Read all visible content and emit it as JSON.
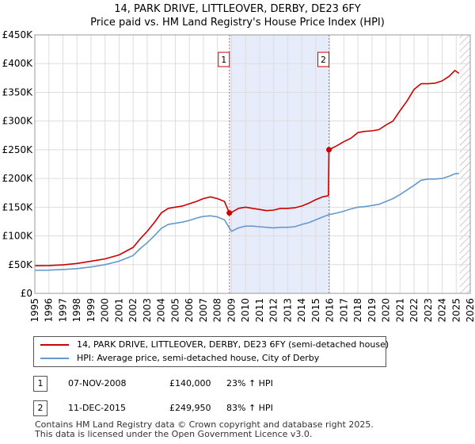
{
  "title_line1": "14, PARK DRIVE, LITTLEOVER, DERBY, DE23 6FY",
  "title_line2": "Price paid vs. HM Land Registry's House Price Index (HPI)",
  "chart_data": {
    "type": "line",
    "x_range": [
      1995,
      2026
    ],
    "ylim": [
      0,
      450000
    ],
    "y_ticks": [
      0,
      50000,
      100000,
      150000,
      200000,
      250000,
      300000,
      350000,
      400000,
      450000
    ],
    "y_tick_labels": [
      "£0",
      "£50K",
      "£100K",
      "£150K",
      "£200K",
      "£250K",
      "£300K",
      "£350K",
      "£400K",
      "£450K"
    ],
    "x_ticks": [
      1995,
      1996,
      1997,
      1998,
      1999,
      2000,
      2001,
      2002,
      2003,
      2004,
      2005,
      2006,
      2007,
      2008,
      2009,
      2010,
      2011,
      2012,
      2013,
      2014,
      2015,
      2016,
      2017,
      2018,
      2019,
      2020,
      2021,
      2022,
      2023,
      2024,
      2025,
      2026
    ],
    "grid": true,
    "shaded_region": [
      2008.85,
      2015.94
    ],
    "future_hatch_from": 2025.25,
    "series": [
      {
        "name": "14, PARK DRIVE, LITTLEOVER, DERBY, DE23 6FY (semi-detached house)",
        "color": "#cc0000",
        "points": [
          [
            1995.0,
            48000
          ],
          [
            1996.0,
            48500
          ],
          [
            1997.0,
            49500
          ],
          [
            1998.0,
            52000
          ],
          [
            1999.0,
            56000
          ],
          [
            2000.0,
            60000
          ],
          [
            2001.0,
            67000
          ],
          [
            2002.0,
            80000
          ],
          [
            2002.5,
            95000
          ],
          [
            2003.0,
            108000
          ],
          [
            2003.5,
            123000
          ],
          [
            2004.0,
            140000
          ],
          [
            2004.5,
            148000
          ],
          [
            2005.0,
            150000
          ],
          [
            2005.5,
            152000
          ],
          [
            2006.0,
            156000
          ],
          [
            2006.5,
            160000
          ],
          [
            2007.0,
            165000
          ],
          [
            2007.5,
            168000
          ],
          [
            2008.0,
            165000
          ],
          [
            2008.5,
            160000
          ],
          [
            2008.85,
            140000
          ],
          [
            2009.0,
            141000
          ],
          [
            2009.5,
            148000
          ],
          [
            2010.0,
            150000
          ],
          [
            2010.5,
            148000
          ],
          [
            2011.0,
            146000
          ],
          [
            2011.5,
            144000
          ],
          [
            2012.0,
            145000
          ],
          [
            2012.5,
            148000
          ],
          [
            2013.0,
            148000
          ],
          [
            2013.5,
            149000
          ],
          [
            2014.0,
            152000
          ],
          [
            2014.5,
            157000
          ],
          [
            2015.0,
            163000
          ],
          [
            2015.5,
            168000
          ],
          [
            2015.9,
            170000
          ],
          [
            2015.94,
            249950
          ],
          [
            2016.5,
            257000
          ],
          [
            2017.0,
            264000
          ],
          [
            2017.5,
            270000
          ],
          [
            2018.0,
            280000
          ],
          [
            2018.5,
            282000
          ],
          [
            2019.0,
            283000
          ],
          [
            2019.5,
            285000
          ],
          [
            2020.0,
            293000
          ],
          [
            2020.5,
            300000
          ],
          [
            2021.0,
            318000
          ],
          [
            2021.5,
            335000
          ],
          [
            2022.0,
            355000
          ],
          [
            2022.5,
            365000
          ],
          [
            2023.0,
            365000
          ],
          [
            2023.5,
            366000
          ],
          [
            2024.0,
            370000
          ],
          [
            2024.5,
            378000
          ],
          [
            2024.9,
            388000
          ],
          [
            2025.2,
            383000
          ]
        ]
      },
      {
        "name": "HPI: Average price, semi-detached house, City of Derby",
        "color": "#6699cc",
        "points": [
          [
            1995.0,
            40000
          ],
          [
            1996.0,
            40500
          ],
          [
            1997.0,
            41500
          ],
          [
            1998.0,
            43000
          ],
          [
            1999.0,
            46000
          ],
          [
            2000.0,
            50000
          ],
          [
            2001.0,
            56000
          ],
          [
            2002.0,
            66000
          ],
          [
            2002.5,
            78000
          ],
          [
            2003.0,
            88000
          ],
          [
            2003.5,
            100000
          ],
          [
            2004.0,
            113000
          ],
          [
            2004.5,
            120000
          ],
          [
            2005.0,
            122000
          ],
          [
            2005.5,
            124000
          ],
          [
            2006.0,
            127000
          ],
          [
            2006.5,
            131000
          ],
          [
            2007.0,
            134000
          ],
          [
            2007.5,
            135000
          ],
          [
            2008.0,
            133000
          ],
          [
            2008.5,
            128000
          ],
          [
            2008.85,
            114000
          ],
          [
            2009.0,
            108000
          ],
          [
            2009.5,
            114000
          ],
          [
            2010.0,
            117000
          ],
          [
            2010.5,
            117000
          ],
          [
            2011.0,
            116000
          ],
          [
            2011.5,
            115000
          ],
          [
            2012.0,
            114000
          ],
          [
            2012.5,
            115000
          ],
          [
            2013.0,
            115000
          ],
          [
            2013.5,
            116000
          ],
          [
            2014.0,
            120000
          ],
          [
            2014.5,
            123000
          ],
          [
            2015.0,
            128000
          ],
          [
            2015.5,
            133000
          ],
          [
            2015.94,
            137000
          ],
          [
            2016.5,
            140000
          ],
          [
            2017.0,
            143000
          ],
          [
            2017.5,
            147000
          ],
          [
            2018.0,
            150000
          ],
          [
            2018.5,
            151000
          ],
          [
            2019.0,
            153000
          ],
          [
            2019.5,
            155000
          ],
          [
            2020.0,
            160000
          ],
          [
            2020.5,
            165000
          ],
          [
            2021.0,
            172000
          ],
          [
            2021.5,
            180000
          ],
          [
            2022.0,
            188000
          ],
          [
            2022.5,
            197000
          ],
          [
            2023.0,
            199000
          ],
          [
            2023.5,
            199000
          ],
          [
            2024.0,
            200000
          ],
          [
            2024.5,
            204000
          ],
          [
            2024.9,
            208000
          ],
          [
            2025.2,
            209000
          ]
        ]
      }
    ],
    "annotations": [
      {
        "label": "1",
        "x": 2008.85,
        "y": 140000
      },
      {
        "label": "2",
        "x": 2015.94,
        "y": 249950
      }
    ]
  },
  "legend": {
    "items": [
      {
        "label": "14, PARK DRIVE, LITTLEOVER, DERBY, DE23 6FY (semi-detached house)",
        "color": "#cc0000"
      },
      {
        "label": "HPI: Average price, semi-detached house, City of Derby",
        "color": "#6699cc"
      }
    ]
  },
  "transactions": [
    {
      "num": "1",
      "date": "07-NOV-2008",
      "price": "£140,000",
      "hpi": "23% ↑ HPI"
    },
    {
      "num": "2",
      "date": "11-DEC-2015",
      "price": "£249,950",
      "hpi": "83% ↑ HPI"
    }
  ],
  "footer": {
    "line1": "Contains HM Land Registry data © Crown copyright and database right 2025.",
    "line2": "This data is licensed under the Open Government Licence v3.0."
  }
}
